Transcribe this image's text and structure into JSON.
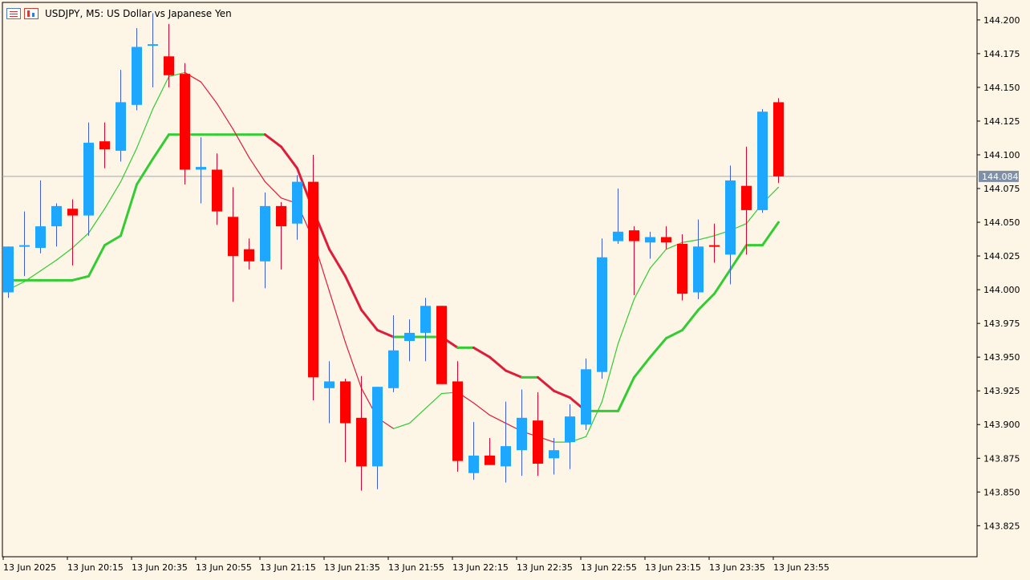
{
  "header": {
    "title": "USDJPY, M5:  US Dollar vs Japanese Yen",
    "menu_icon": "list-menu-icon",
    "chart_icon": "candlestick-chart-icon"
  },
  "colors": {
    "background": "#fdf5e6",
    "bull": "#1ea7ff",
    "bear": "#ff0000",
    "wick_bull": "#3d5ed6",
    "wick_bear": "#e0002a",
    "fast_ma_up": "#33cc33",
    "fast_ma_down": "#dd1e3a",
    "slow_ma_up": "#33cc33",
    "slow_ma_down": "#dd1e3a",
    "price_line": "#a0a8b4",
    "price_label_bg": "#7f8fa6"
  },
  "chart_data": {
    "type": "candlestick",
    "symbol": "USDJPY",
    "timeframe": "M5",
    "ylim": [
      143.802,
      144.213
    ],
    "y_ticks": [
      "144.200",
      "144.175",
      "144.150",
      "144.125",
      "144.100",
      "144.075",
      "144.050",
      "144.025",
      "144.000",
      "143.975",
      "143.950",
      "143.925",
      "143.900",
      "143.875",
      "143.850",
      "143.825"
    ],
    "x_ticks": [
      "13 Jun 2025",
      "13 Jun 20:15",
      "13 Jun 20:35",
      "13 Jun 20:55",
      "13 Jun 21:15",
      "13 Jun 21:35",
      "13 Jun 21:55",
      "13 Jun 22:15",
      "13 Jun 22:35",
      "13 Jun 22:55",
      "13 Jun 23:15",
      "13 Jun 23:35",
      "13 Jun 23:55"
    ],
    "current_price": "144.084",
    "candles": [
      {
        "o": 143.998,
        "h": 144.032,
        "l": 143.994,
        "c": 144.032
      },
      {
        "o": 144.033,
        "h": 144.058,
        "l": 144.01,
        "c": 144.033
      },
      {
        "o": 144.031,
        "h": 144.081,
        "l": 144.027,
        "c": 144.047
      },
      {
        "o": 144.047,
        "h": 144.064,
        "l": 144.032,
        "c": 144.062
      },
      {
        "o": 144.06,
        "h": 144.067,
        "l": 144.018,
        "c": 144.055
      },
      {
        "o": 144.055,
        "h": 144.124,
        "l": 144.04,
        "c": 144.109
      },
      {
        "o": 144.11,
        "h": 144.124,
        "l": 144.09,
        "c": 144.104
      },
      {
        "o": 144.103,
        "h": 144.163,
        "l": 144.095,
        "c": 144.139
      },
      {
        "o": 144.137,
        "h": 144.194,
        "l": 144.133,
        "c": 144.18
      },
      {
        "o": 144.182,
        "h": 144.205,
        "l": 144.15,
        "c": 144.182
      },
      {
        "o": 144.173,
        "h": 144.197,
        "l": 144.15,
        "c": 144.159
      },
      {
        "o": 144.16,
        "h": 144.168,
        "l": 144.078,
        "c": 144.089
      },
      {
        "o": 144.089,
        "h": 144.113,
        "l": 144.064,
        "c": 144.091
      },
      {
        "o": 144.089,
        "h": 144.101,
        "l": 144.048,
        "c": 144.058
      },
      {
        "o": 144.054,
        "h": 144.076,
        "l": 143.991,
        "c": 144.025
      },
      {
        "o": 144.03,
        "h": 144.038,
        "l": 144.015,
        "c": 144.021
      },
      {
        "o": 144.021,
        "h": 144.072,
        "l": 144.001,
        "c": 144.062
      },
      {
        "o": 144.062,
        "h": 144.065,
        "l": 144.015,
        "c": 144.047
      },
      {
        "o": 144.049,
        "h": 144.085,
        "l": 144.037,
        "c": 144.08
      },
      {
        "o": 144.08,
        "h": 144.1,
        "l": 143.918,
        "c": 143.935
      },
      {
        "o": 143.927,
        "h": 143.947,
        "l": 143.901,
        "c": 143.932
      },
      {
        "o": 143.932,
        "h": 143.934,
        "l": 143.872,
        "c": 143.901
      },
      {
        "o": 143.905,
        "h": 143.936,
        "l": 143.851,
        "c": 143.869
      },
      {
        "o": 143.869,
        "h": 143.928,
        "l": 143.852,
        "c": 143.928
      },
      {
        "o": 143.927,
        "h": 143.981,
        "l": 143.924,
        "c": 143.955
      },
      {
        "o": 143.962,
        "h": 143.978,
        "l": 143.947,
        "c": 143.968
      },
      {
        "o": 143.968,
        "h": 143.994,
        "l": 143.947,
        "c": 143.988
      },
      {
        "o": 143.988,
        "h": 143.988,
        "l": 143.93,
        "c": 143.93
      },
      {
        "o": 143.932,
        "h": 143.947,
        "l": 143.865,
        "c": 143.873
      },
      {
        "o": 143.864,
        "h": 143.902,
        "l": 143.859,
        "c": 143.877
      },
      {
        "o": 143.877,
        "h": 143.89,
        "l": 143.87,
        "c": 143.87
      },
      {
        "o": 143.869,
        "h": 143.917,
        "l": 143.857,
        "c": 143.884
      },
      {
        "o": 143.881,
        "h": 143.926,
        "l": 143.862,
        "c": 143.905
      },
      {
        "o": 143.903,
        "h": 143.924,
        "l": 143.862,
        "c": 143.871
      },
      {
        "o": 143.875,
        "h": 143.89,
        "l": 143.863,
        "c": 143.881
      },
      {
        "o": 143.887,
        "h": 143.915,
        "l": 143.867,
        "c": 143.906
      },
      {
        "o": 143.9,
        "h": 143.949,
        "l": 143.896,
        "c": 143.941
      },
      {
        "o": 143.939,
        "h": 144.038,
        "l": 143.934,
        "c": 144.024
      },
      {
        "o": 144.036,
        "h": 144.075,
        "l": 144.034,
        "c": 144.043
      },
      {
        "o": 144.044,
        "h": 144.047,
        "l": 143.996,
        "c": 144.036
      },
      {
        "o": 144.035,
        "h": 144.043,
        "l": 144.023,
        "c": 144.039
      },
      {
        "o": 144.039,
        "h": 144.047,
        "l": 144.03,
        "c": 144.035
      },
      {
        "o": 144.034,
        "h": 144.041,
        "l": 143.992,
        "c": 143.997
      },
      {
        "o": 143.998,
        "h": 144.052,
        "l": 143.993,
        "c": 144.032
      },
      {
        "o": 144.033,
        "h": 144.049,
        "l": 144.02,
        "c": 144.032
      },
      {
        "o": 144.026,
        "h": 144.092,
        "l": 144.004,
        "c": 144.081
      },
      {
        "o": 144.077,
        "h": 144.106,
        "l": 144.026,
        "c": 144.059
      },
      {
        "o": 144.059,
        "h": 144.134,
        "l": 144.057,
        "c": 144.132
      },
      {
        "o": 144.139,
        "h": 144.142,
        "l": 144.079,
        "c": 144.084
      }
    ],
    "fast_ma": [
      144.0,
      144.006,
      144.014,
      144.022,
      144.031,
      144.042,
      144.06,
      144.08,
      144.105,
      144.134,
      144.158,
      144.161,
      144.154,
      144.138,
      144.119,
      144.098,
      144.08,
      144.068,
      144.064,
      144.037,
      143.999,
      143.961,
      143.927,
      143.905,
      143.897,
      143.901,
      143.912,
      143.923,
      143.924,
      143.916,
      143.907,
      143.901,
      143.895,
      143.891,
      143.887,
      143.887,
      143.891,
      143.917,
      143.96,
      143.993,
      144.016,
      144.03,
      144.035,
      144.037,
      144.04,
      144.044,
      144.049,
      144.064,
      144.076
    ],
    "slow_ma": [
      144.007,
      144.007,
      144.007,
      144.007,
      144.007,
      144.01,
      144.033,
      144.04,
      144.078,
      144.097,
      144.115,
      144.115,
      144.115,
      144.115,
      144.115,
      144.115,
      144.115,
      144.106,
      144.09,
      144.059,
      144.03,
      144.01,
      143.985,
      143.97,
      143.965,
      143.965,
      143.965,
      143.965,
      143.957,
      143.957,
      143.95,
      143.94,
      143.935,
      143.935,
      143.925,
      143.92,
      143.91,
      143.91,
      143.91,
      143.935,
      143.95,
      143.964,
      143.97,
      143.985,
      143.997,
      144.015,
      144.033,
      144.033,
      144.05
    ]
  }
}
